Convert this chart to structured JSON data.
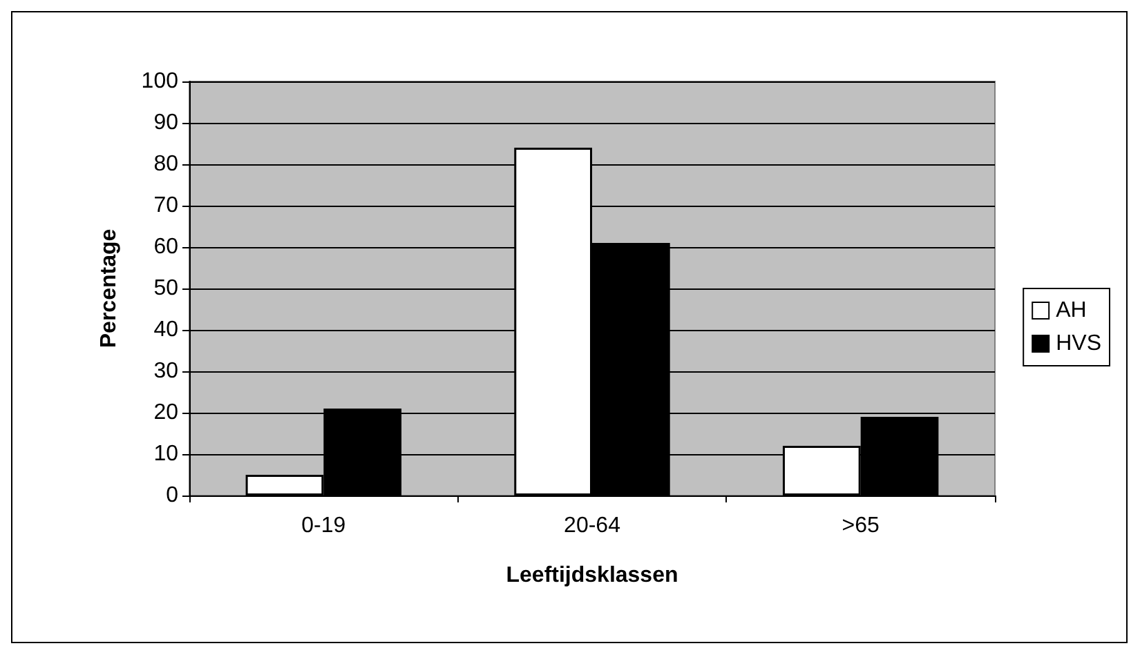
{
  "chart_data": {
    "type": "bar",
    "xlabel": "Leeftijdsklassen",
    "ylabel": "Percentage",
    "categories": [
      "0-19",
      "20-64",
      ">65"
    ],
    "series": [
      {
        "name": "AH",
        "color": "#ffffff",
        "values": [
          5,
          84,
          12
        ]
      },
      {
        "name": "HVS",
        "color": "#000000",
        "values": [
          21,
          61,
          19
        ]
      }
    ],
    "ylim": [
      0,
      100
    ],
    "yticks": [
      0,
      10,
      20,
      30,
      40,
      50,
      60,
      70,
      80,
      90,
      100
    ],
    "grid": "y",
    "legend": "right"
  }
}
